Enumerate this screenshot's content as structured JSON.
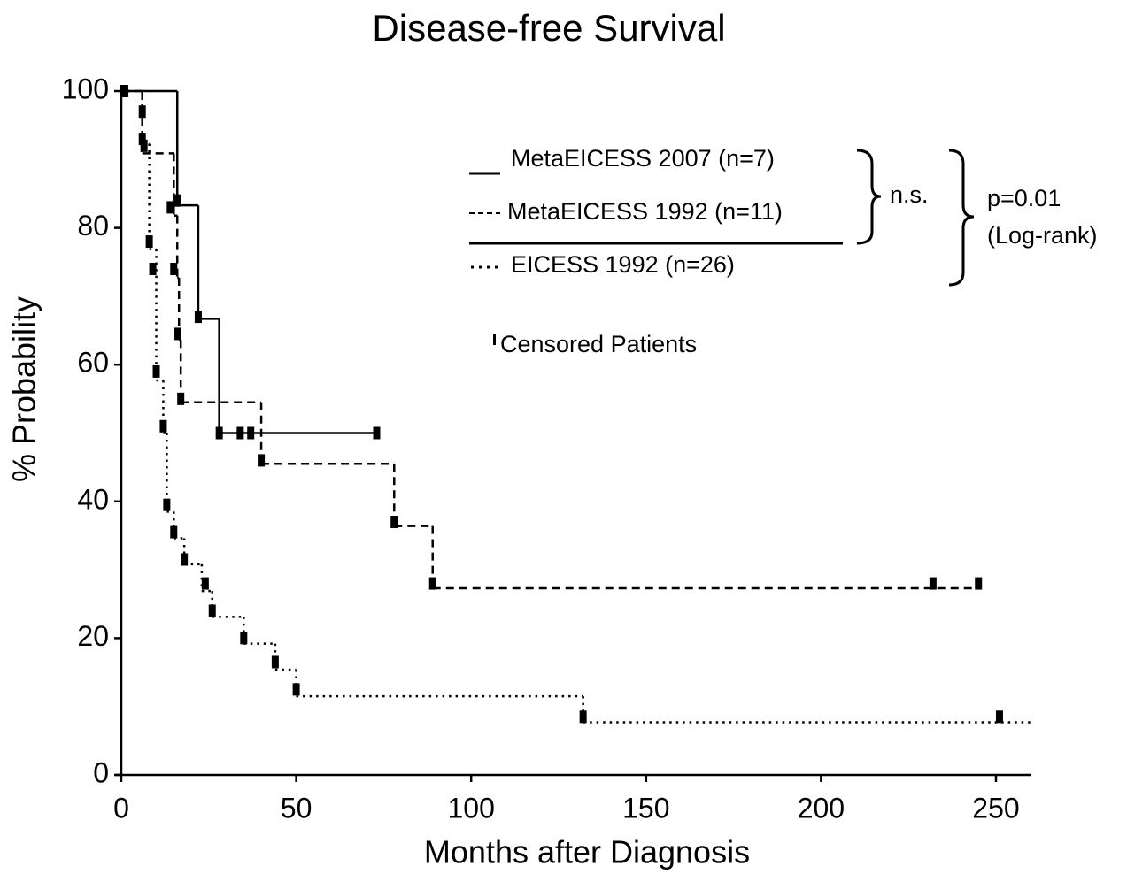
{
  "chart_data": {
    "type": "step",
    "title": "Disease-free Survival",
    "x_label": "Months after Diagnosis",
    "y_label": "% Probability",
    "xlim": [
      0,
      260
    ],
    "xticks": [
      0,
      50,
      100,
      150,
      200,
      250
    ],
    "ylim": [
      0,
      100
    ],
    "yticks": [
      0,
      20,
      40,
      60,
      80,
      100
    ],
    "grid": false,
    "series": [
      {
        "name": "MetaEICESS 2007 (n=7)",
        "color": "#000000",
        "line_style": "solid",
        "x": [
          0,
          16,
          22,
          28,
          73
        ],
        "values": [
          100,
          83.3,
          66.7,
          50,
          50
        ],
        "censored_x": [
          1,
          16,
          22,
          28,
          34,
          37,
          73
        ],
        "censored_values": [
          100,
          84,
          67,
          50,
          50,
          50,
          50
        ]
      },
      {
        "name": "MetaEICESS 1992 (n=11)",
        "color": "#000000",
        "line_style": "dashed",
        "x": [
          0,
          6,
          15,
          16,
          16.5,
          17,
          40,
          78,
          89,
          245
        ],
        "values": [
          100,
          90.9,
          81.8,
          72.7,
          63.6,
          54.5,
          45.5,
          36.4,
          27.3,
          27.3
        ],
        "censored_x": [
          6,
          14,
          15,
          16,
          17,
          40,
          78,
          89,
          232,
          245
        ],
        "censored_values": [
          93,
          83,
          74,
          64.5,
          55,
          46,
          37,
          28,
          28,
          28
        ]
      },
      {
        "name": "EICESS 1992 (n=26)",
        "color": "#000000",
        "line_style": "dotted",
        "x": [
          0,
          6,
          8,
          10,
          12,
          13,
          15,
          18,
          23,
          26,
          35,
          44,
          50,
          132,
          260
        ],
        "values": [
          100,
          92.3,
          76.9,
          57.7,
          50,
          38.5,
          34.6,
          30.8,
          26.9,
          23.1,
          19.2,
          15.4,
          11.5,
          7.7,
          7.7
        ],
        "censored_x": [
          6,
          6.5,
          8,
          9,
          10,
          12,
          13,
          15,
          18,
          24,
          26,
          35,
          44,
          50,
          132,
          251
        ],
        "censored_values": [
          97,
          92,
          78,
          74,
          59,
          51,
          39.5,
          35.5,
          31.5,
          28,
          24,
          20,
          16.5,
          12.5,
          8.5,
          8.5
        ]
      }
    ],
    "annotations": [
      "n.s.",
      "p=0.01",
      "(Log-rank)",
      "Censored Patients"
    ]
  }
}
